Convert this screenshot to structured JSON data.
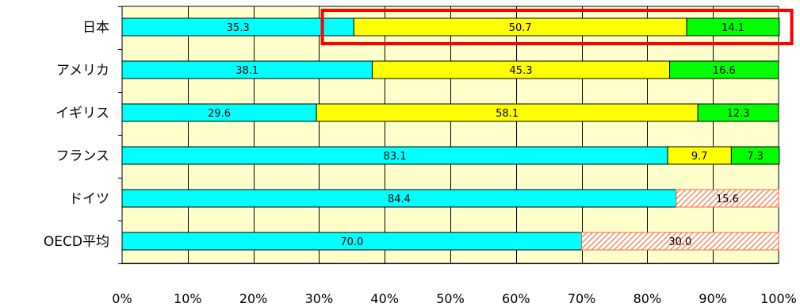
{
  "chart_data": {
    "type": "bar",
    "orientation": "horizontal",
    "stacked": true,
    "normalized_percent": true,
    "categories": [
      "日本",
      "アメリカ",
      "イギリス",
      "フランス",
      "ドイツ",
      "OECD平均"
    ],
    "series": [
      {
        "values": [
          35.3,
          38.1,
          29.6,
          83.1,
          84.4,
          70.0
        ],
        "color": "#00FFFF",
        "pattern": "solid"
      },
      {
        "values": [
          50.7,
          45.3,
          58.1,
          9.7,
          null,
          null
        ],
        "color": "#FFFF00",
        "pattern": "solid"
      },
      {
        "values": [
          14.1,
          16.6,
          12.3,
          7.3,
          null,
          null
        ],
        "color": "#00FF00",
        "pattern": "solid"
      },
      {
        "values": [
          null,
          null,
          null,
          null,
          15.6,
          30.0
        ],
        "color": "#FF6633",
        "pattern": "diagonal-hatch"
      }
    ],
    "data_labels": [
      [
        "35.3",
        "50.7",
        "14.1",
        ""
      ],
      [
        "38.1",
        "45.3",
        "16.6",
        ""
      ],
      [
        "29.6",
        "58.1",
        "12.3",
        ""
      ],
      [
        "83.1",
        "9.7",
        "7.3",
        ""
      ],
      [
        "84.4",
        "",
        "",
        "15.6"
      ],
      [
        "70.0",
        "",
        "",
        "30.0"
      ]
    ],
    "x_ticks": [
      "0%",
      "10%",
      "20%",
      "30%",
      "40%",
      "50%",
      "60%",
      "70%",
      "80%",
      "90%",
      "100%"
    ],
    "xlim": [
      0,
      100
    ],
    "grid": true,
    "plot_background": "#FFFFCC",
    "highlight": {
      "category": "日本",
      "from_value": 30.5,
      "to_value": 102,
      "color": "#FF0000"
    },
    "title": "",
    "xlabel": "",
    "ylabel": ""
  }
}
